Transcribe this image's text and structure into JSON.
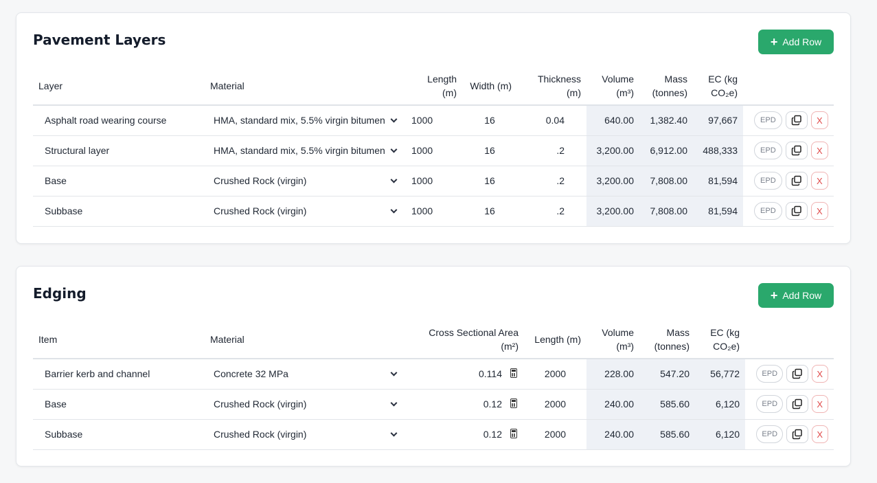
{
  "pavement": {
    "title": "Pavement Layers",
    "add_label": "Add Row",
    "headers": [
      "Layer",
      "Material",
      "Length (m)",
      "Width (m)",
      "Thickness (m)",
      "Volume (m³)",
      "Mass (tonnes)",
      "EC (kg CO₂e)"
    ],
    "rows": [
      {
        "layer": "Asphalt road wearing course",
        "material": "HMA, standard mix, 5.5% virgin bitumen",
        "length": "1000",
        "width": "16",
        "thickness": "0.04",
        "volume": "640.00",
        "mass": "1,382.40",
        "ec": "97,667"
      },
      {
        "layer": "Structural layer",
        "material": "HMA, standard mix, 5.5% virgin bitumen",
        "length": "1000",
        "width": "16",
        "thickness": ".2",
        "volume": "3,200.00",
        "mass": "6,912.00",
        "ec": "488,333"
      },
      {
        "layer": "Base",
        "material": "Crushed Rock (virgin)",
        "length": "1000",
        "width": "16",
        "thickness": ".2",
        "volume": "3,200.00",
        "mass": "7,808.00",
        "ec": "81,594"
      },
      {
        "layer": "Subbase",
        "material": "Crushed Rock (virgin)",
        "length": "1000",
        "width": "16",
        "thickness": ".2",
        "volume": "3,200.00",
        "mass": "7,808.00",
        "ec": "81,594"
      }
    ]
  },
  "edging": {
    "title": "Edging",
    "add_label": "Add Row",
    "headers": [
      "Item",
      "Material",
      "Cross Sectional Area (m²)",
      "Length (m)",
      "Volume (m³)",
      "Mass (tonnes)",
      "EC (kg CO₂e)"
    ],
    "rows": [
      {
        "item": "Barrier kerb and channel",
        "material": "Concrete 32 MPa",
        "area": "0.114",
        "length": "2000",
        "volume": "228.00",
        "mass": "547.20",
        "ec": "56,772"
      },
      {
        "item": "Base",
        "material": "Crushed Rock (virgin)",
        "area": "0.12",
        "length": "2000",
        "volume": "240.00",
        "mass": "585.60",
        "ec": "6,120"
      },
      {
        "item": "Subbase",
        "material": "Crushed Rock (virgin)",
        "area": "0.12",
        "length": "2000",
        "volume": "240.00",
        "mass": "585.60",
        "ec": "6,120"
      }
    ]
  },
  "actions": {
    "epd": "EPD",
    "delete": "X"
  },
  "colors": {
    "accent": "#2aa86c",
    "shade": "#eef1f6",
    "danger": "#e04a4a"
  },
  "icons": {
    "add": "plus-icon",
    "select": "chevron-down-icon",
    "copy": "copy-icon",
    "calculator": "calculator-icon"
  }
}
